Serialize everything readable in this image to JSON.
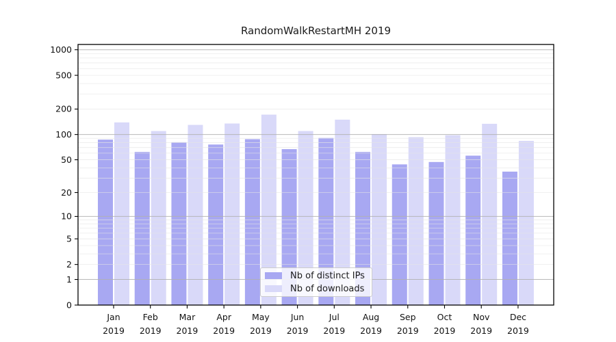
{
  "chart_data": {
    "type": "bar",
    "title": "RandomWalkRestartMH 2019",
    "year": "2019",
    "months": [
      "Jan",
      "Feb",
      "Mar",
      "Apr",
      "May",
      "Jun",
      "Jul",
      "Aug",
      "Sep",
      "Oct",
      "Nov",
      "Dec"
    ],
    "categories": [
      "Jan 2019",
      "Feb 2019",
      "Mar 2019",
      "Apr 2019",
      "May 2019",
      "Jun 2019",
      "Jul 2019",
      "Aug 2019",
      "Sep 2019",
      "Oct 2019",
      "Nov 2019",
      "Dec 2019"
    ],
    "series": [
      {
        "name": "Nb of distinct IPs",
        "color": "#a8a8f2",
        "values": [
          87,
          62,
          81,
          76,
          88,
          67,
          91,
          62,
          44,
          47,
          56,
          36
        ]
      },
      {
        "name": "Nb of downloads",
        "color": "#d9d9f9",
        "values": [
          139,
          110,
          130,
          135,
          172,
          110,
          150,
          101,
          93,
          98,
          134,
          84
        ]
      }
    ],
    "yscale": "log1p",
    "yticks": [
      0,
      1,
      2,
      5,
      10,
      20,
      50,
      100,
      200,
      500,
      1000
    ],
    "ylim": [
      0,
      1150
    ],
    "grid": true,
    "legend_position": "lower center",
    "colors": {
      "grid_major": "#b0b0b0",
      "grid_minor": "#e4e4e4",
      "frame": "#000000",
      "background": "#ffffff"
    }
  }
}
